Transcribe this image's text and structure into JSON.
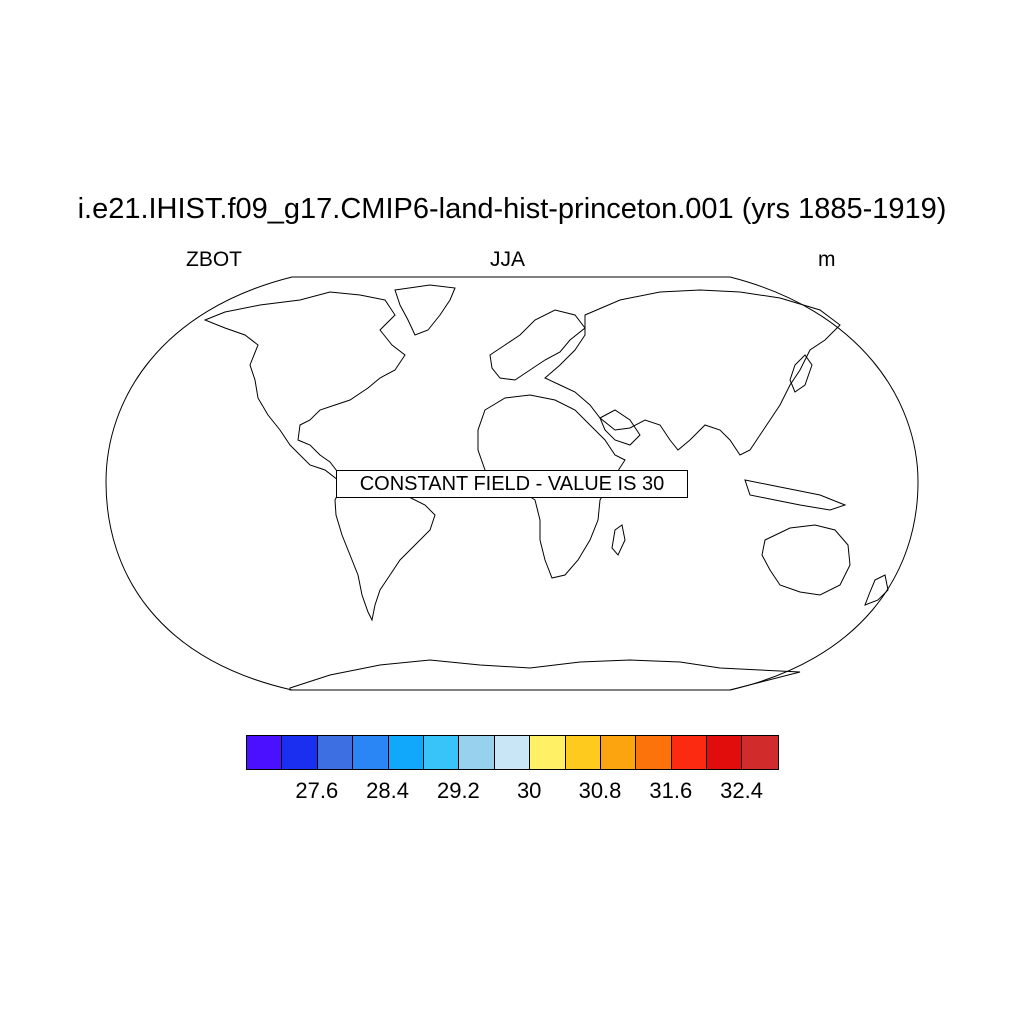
{
  "title": "i.e21.IHIST.f09_g17.CMIP6-land-hist-princeton.001 (yrs 1885-1919)",
  "subtitle_left": "ZBOT",
  "subtitle_center": "JJA",
  "subtitle_right": "m",
  "map": {
    "projection": "Robinson",
    "constant_field_note": "CONSTANT FIELD - VALUE IS 30",
    "constant_value": 30,
    "land_outline_color": "#000000",
    "ocean_fill": "#ffffff"
  },
  "colorbar": {
    "colors": [
      "#4a10ff",
      "#1a2ff0",
      "#3d6fe3",
      "#2a86f4",
      "#11a7fa",
      "#38c4f9",
      "#98d1ee",
      "#c8e6f6",
      "#fff066",
      "#fdca1d",
      "#fca40f",
      "#fc730b",
      "#fd2a12",
      "#e10d0d",
      "#d12b2b"
    ],
    "tick_labels": [
      "27.6",
      "28.4",
      "29.2",
      "30",
      "30.8",
      "31.6",
      "32.4"
    ],
    "tick_values": [
      27.6,
      28.4,
      29.2,
      30.0,
      30.8,
      31.6,
      32.4
    ]
  }
}
